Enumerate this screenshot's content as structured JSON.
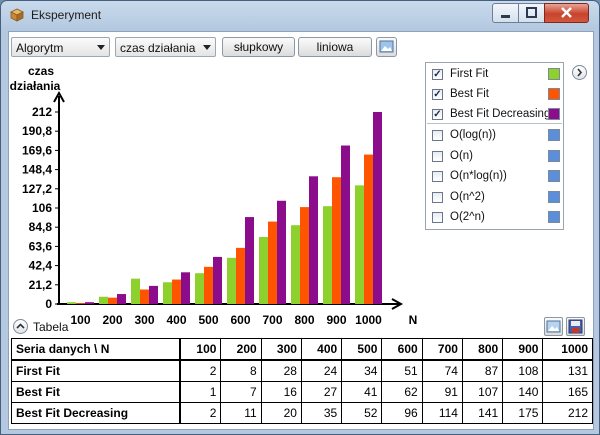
{
  "window": {
    "title": "Eksperyment",
    "icon": "package-box-icon"
  },
  "toolbar": {
    "algorithm_combo": "Algorytm",
    "metric_combo": "czas działania",
    "bar_button": "słupkowy",
    "line_button": "liniowa",
    "image_button_icon": "picture-icon"
  },
  "legend": {
    "series": [
      {
        "label": "First Fit",
        "checked": true,
        "color": "#8ed12e"
      },
      {
        "label": "Best Fit",
        "checked": true,
        "color": "#ff5500"
      },
      {
        "label": "Best Fit Decreasing",
        "checked": true,
        "color": "#8c0d8c"
      }
    ],
    "complexity": [
      {
        "label": "O(log(n))",
        "checked": false,
        "color": "#5b8fdc"
      },
      {
        "label": "O(n)",
        "checked": false,
        "color": "#5b8fdc"
      },
      {
        "label": "O(n*log(n))",
        "checked": false,
        "color": "#5b8fdc"
      },
      {
        "label": "O(n^2)",
        "checked": false,
        "color": "#5b8fdc"
      },
      {
        "label": "O(2^n)",
        "checked": false,
        "color": "#5b8fdc"
      }
    ],
    "expand_icon": "chevron-right-icon"
  },
  "chart_data": {
    "type": "bar",
    "ylabel": "czas działania",
    "xlabel": "N",
    "categories": [
      "100",
      "200",
      "300",
      "400",
      "500",
      "600",
      "700",
      "800",
      "900",
      "1000"
    ],
    "yticks": [
      "0",
      "21,2",
      "42,4",
      "63,6",
      "84,8",
      "106",
      "127,2",
      "148,4",
      "169,6",
      "190,8",
      "212"
    ],
    "ylim": [
      0,
      212
    ],
    "series": [
      {
        "name": "First Fit",
        "color": "#8ed12e",
        "values": [
          2,
          8,
          28,
          24,
          34,
          51,
          74,
          87,
          108,
          131
        ]
      },
      {
        "name": "Best Fit",
        "color": "#ff5500",
        "values": [
          1,
          7,
          16,
          27,
          41,
          62,
          91,
          107,
          140,
          165
        ]
      },
      {
        "name": "Best Fit Decreasing",
        "color": "#8c0d8c",
        "values": [
          2,
          11,
          20,
          35,
          52,
          96,
          114,
          141,
          175,
          212
        ]
      }
    ]
  },
  "table": {
    "title": "Tabela",
    "collapse_icon": "chevron-up-icon",
    "export_image_icon": "image-export-icon",
    "save_icon": "save-disk-icon",
    "header": [
      "Seria danych \\ N",
      "100",
      "200",
      "300",
      "400",
      "500",
      "600",
      "700",
      "800",
      "900",
      "1000"
    ],
    "rows": [
      [
        "First Fit",
        "2",
        "8",
        "28",
        "24",
        "34",
        "51",
        "74",
        "87",
        "108",
        "131"
      ],
      [
        "Best Fit",
        "1",
        "7",
        "16",
        "27",
        "41",
        "62",
        "91",
        "107",
        "140",
        "165"
      ],
      [
        "Best Fit Decreasing",
        "2",
        "11",
        "20",
        "35",
        "52",
        "96",
        "114",
        "141",
        "175",
        "212"
      ]
    ]
  }
}
